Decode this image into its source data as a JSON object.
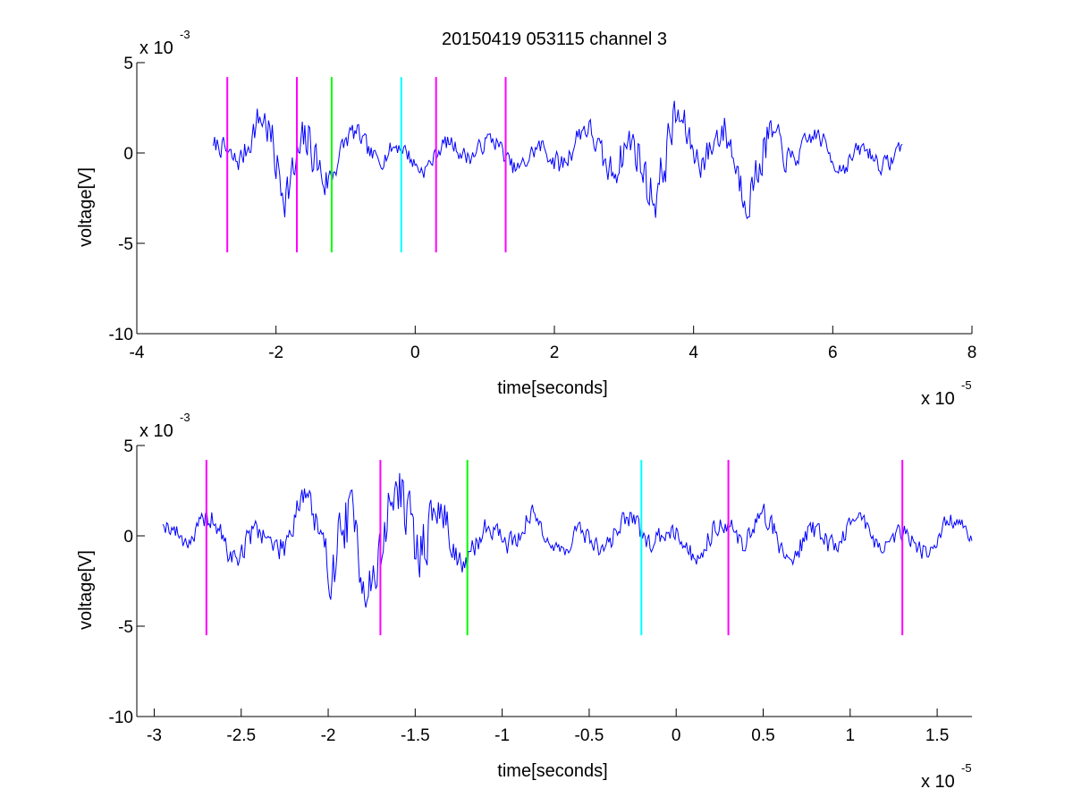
{
  "figure": {
    "title": "20150419 053115 channel 3",
    "background": "#ffffff"
  },
  "chart_data": [
    {
      "type": "line",
      "title": "20150419 053115 channel 3",
      "xlabel": "time[seconds]",
      "ylabel": "voltage[V]",
      "x_exponent_label": "x 10",
      "x_exponent": "-5",
      "y_exponent_label": "x 10",
      "y_exponent": "-3",
      "xlim": [
        -4e-05,
        8e-05
      ],
      "ylim": [
        -0.01,
        0.005
      ],
      "x_tick_values": [
        -4e-05,
        -2e-05,
        0,
        2e-05,
        4e-05,
        6e-05,
        8e-05
      ],
      "x_tick_labels": [
        "-4",
        "-2",
        "0",
        "2",
        "4",
        "6",
        "8"
      ],
      "y_tick_values": [
        0.005,
        0,
        -0.005,
        -0.01
      ],
      "y_tick_labels": [
        "5",
        "0",
        "-5",
        "-10"
      ],
      "grid": false,
      "series": [
        {
          "color": "#0000ff",
          "x_start": -2.9e-05,
          "x_end": 7e-05,
          "seed": 7,
          "envelope": [
            [
              -2.9e-05,
              0.0012
            ],
            [
              -2.4e-05,
              0.0016
            ],
            [
              -2.2e-05,
              0.0024
            ],
            [
              -2e-05,
              0.003
            ],
            [
              -1.8e-05,
              0.003
            ],
            [
              -1.5e-05,
              0.0031
            ],
            [
              -1.3e-05,
              0.0026
            ],
            [
              -1.1e-05,
              0.0014
            ],
            [
              -5e-06,
              0.0011
            ],
            [
              5e-06,
              0.001
            ],
            [
              1.5e-05,
              0.0011
            ],
            [
              2.5e-05,
              0.0016
            ],
            [
              3e-05,
              0.0024
            ],
            [
              3.6e-05,
              0.0032
            ],
            [
              4e-05,
              0.0018
            ],
            [
              4.5e-05,
              0.0025
            ],
            [
              5e-05,
              0.0026
            ],
            [
              5.5e-05,
              0.0012
            ],
            [
              6.5e-05,
              0.0011
            ],
            [
              7e-05,
              0.0011
            ]
          ]
        }
      ],
      "markers": [
        {
          "x": -2.7e-05,
          "color": "#ff00ff",
          "y_range": [
            -0.0055,
            0.0042
          ]
        },
        {
          "x": -1.7e-05,
          "color": "#ff00ff",
          "y_range": [
            -0.0055,
            0.0042
          ]
        },
        {
          "x": -1.2e-05,
          "color": "#00ff00",
          "y_range": [
            -0.0055,
            0.0042
          ]
        },
        {
          "x": -2e-06,
          "color": "#00ffff",
          "y_range": [
            -0.0055,
            0.0042
          ]
        },
        {
          "x": 3e-06,
          "color": "#ff00ff",
          "y_range": [
            -0.0055,
            0.0042
          ]
        },
        {
          "x": 1.3e-05,
          "color": "#ff00ff",
          "y_range": [
            -0.0055,
            0.0042
          ]
        }
      ]
    },
    {
      "type": "line",
      "xlabel": "time[seconds]",
      "ylabel": "voltage[V]",
      "x_exponent_label": "x 10",
      "x_exponent": "-5",
      "y_exponent_label": "x 10",
      "y_exponent": "-3",
      "xlim": [
        -3.1e-05,
        1.7e-05
      ],
      "ylim": [
        -0.01,
        0.005
      ],
      "x_tick_values": [
        -3e-05,
        -2.5e-05,
        -2e-05,
        -1.5e-05,
        -1e-05,
        -5e-06,
        0,
        5e-06,
        1e-05,
        1.5e-05
      ],
      "x_tick_labels": [
        "-3",
        "-2.5",
        "-2",
        "-1.5",
        "-1",
        "-0.5",
        "0",
        "0.5",
        "1",
        "1.5"
      ],
      "y_tick_values": [
        0.005,
        0,
        -0.005,
        -0.01
      ],
      "y_tick_labels": [
        "5",
        "0",
        "-5",
        "-10"
      ],
      "grid": false,
      "series": [
        {
          "color": "#0000ff",
          "x_start": -2.95e-05,
          "x_end": 1.7e-05,
          "seed": 19,
          "envelope": [
            [
              -2.95e-05,
              0.001
            ],
            [
              -2.5e-05,
              0.0016
            ],
            [
              -2.3e-05,
              0.0014
            ],
            [
              -2.1e-05,
              0.0032
            ],
            [
              -1.9e-05,
              0.004
            ],
            [
              -1.7e-05,
              0.0034
            ],
            [
              -1.5e-05,
              0.0036
            ],
            [
              -1.3e-05,
              0.0022
            ],
            [
              -1.1e-05,
              0.0014
            ],
            [
              -5e-06,
              0.0012
            ],
            [
              0,
              0.0012
            ],
            [
              5e-06,
              0.0016
            ],
            [
              1e-05,
              0.0012
            ],
            [
              1.7e-05,
              0.0011
            ]
          ]
        }
      ],
      "markers": [
        {
          "x": -2.7e-05,
          "color": "#ff00ff",
          "y_range": [
            -0.0055,
            0.0042
          ]
        },
        {
          "x": -1.7e-05,
          "color": "#ff00ff",
          "y_range": [
            -0.0055,
            0.0042
          ]
        },
        {
          "x": -1.2e-05,
          "color": "#00ff00",
          "y_range": [
            -0.0055,
            0.0042
          ]
        },
        {
          "x": -2e-06,
          "color": "#00ffff",
          "y_range": [
            -0.0055,
            0.0042
          ]
        },
        {
          "x": 3e-06,
          "color": "#ff00ff",
          "y_range": [
            -0.0055,
            0.0042
          ]
        },
        {
          "x": 1.3e-05,
          "color": "#ff00ff",
          "y_range": [
            -0.0055,
            0.0042
          ]
        }
      ]
    }
  ]
}
